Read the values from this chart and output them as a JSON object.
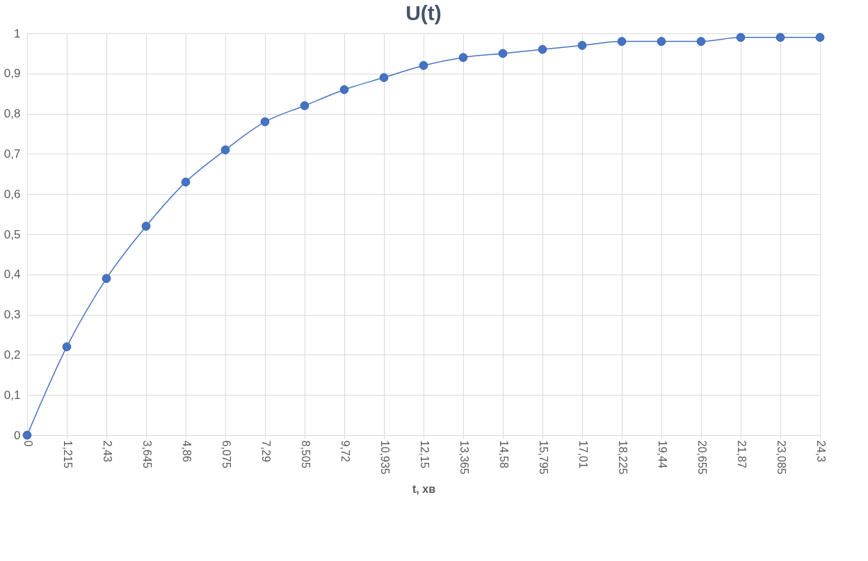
{
  "chart_data": {
    "type": "line",
    "title": "U(t)",
    "xlabel": "t, хв",
    "categories": [
      "0",
      "1,215",
      "2,43",
      "3,645",
      "4,86",
      "6,075",
      "7,29",
      "8,505",
      "9,72",
      "10,935",
      "12,15",
      "13,365",
      "14,58",
      "15,795",
      "17,01",
      "18,225",
      "19,44",
      "20,655",
      "21,87",
      "23,085",
      "24,3"
    ],
    "series": [
      {
        "color": "#4472c4",
        "values": [
          0,
          0.22,
          0.39,
          0.52,
          0.63,
          0.71,
          0.78,
          0.82,
          0.86,
          0.89,
          0.92,
          0.94,
          0.95,
          0.96,
          0.97,
          0.98,
          0.98,
          0.98,
          0.99,
          0.99,
          0.99
        ]
      }
    ],
    "ylim": [
      0,
      1
    ],
    "yticks": [
      0,
      {
        "value": 0.1,
        "label": "0,1"
      },
      {
        "value": 0.2,
        "label": "0,2"
      },
      {
        "value": 0.3,
        "label": "0,3"
      },
      {
        "value": 0.4,
        "label": "0,4"
      },
      {
        "value": 0.5,
        "label": "0,5"
      },
      {
        "value": 0.6,
        "label": "0,6"
      },
      {
        "value": 0.7,
        "label": "0,7"
      },
      {
        "value": 0.8,
        "label": "0,8"
      },
      {
        "value": 0.9,
        "label": "0,9"
      },
      1
    ],
    "grid": true,
    "marker": "circle",
    "line_style": "solid"
  }
}
